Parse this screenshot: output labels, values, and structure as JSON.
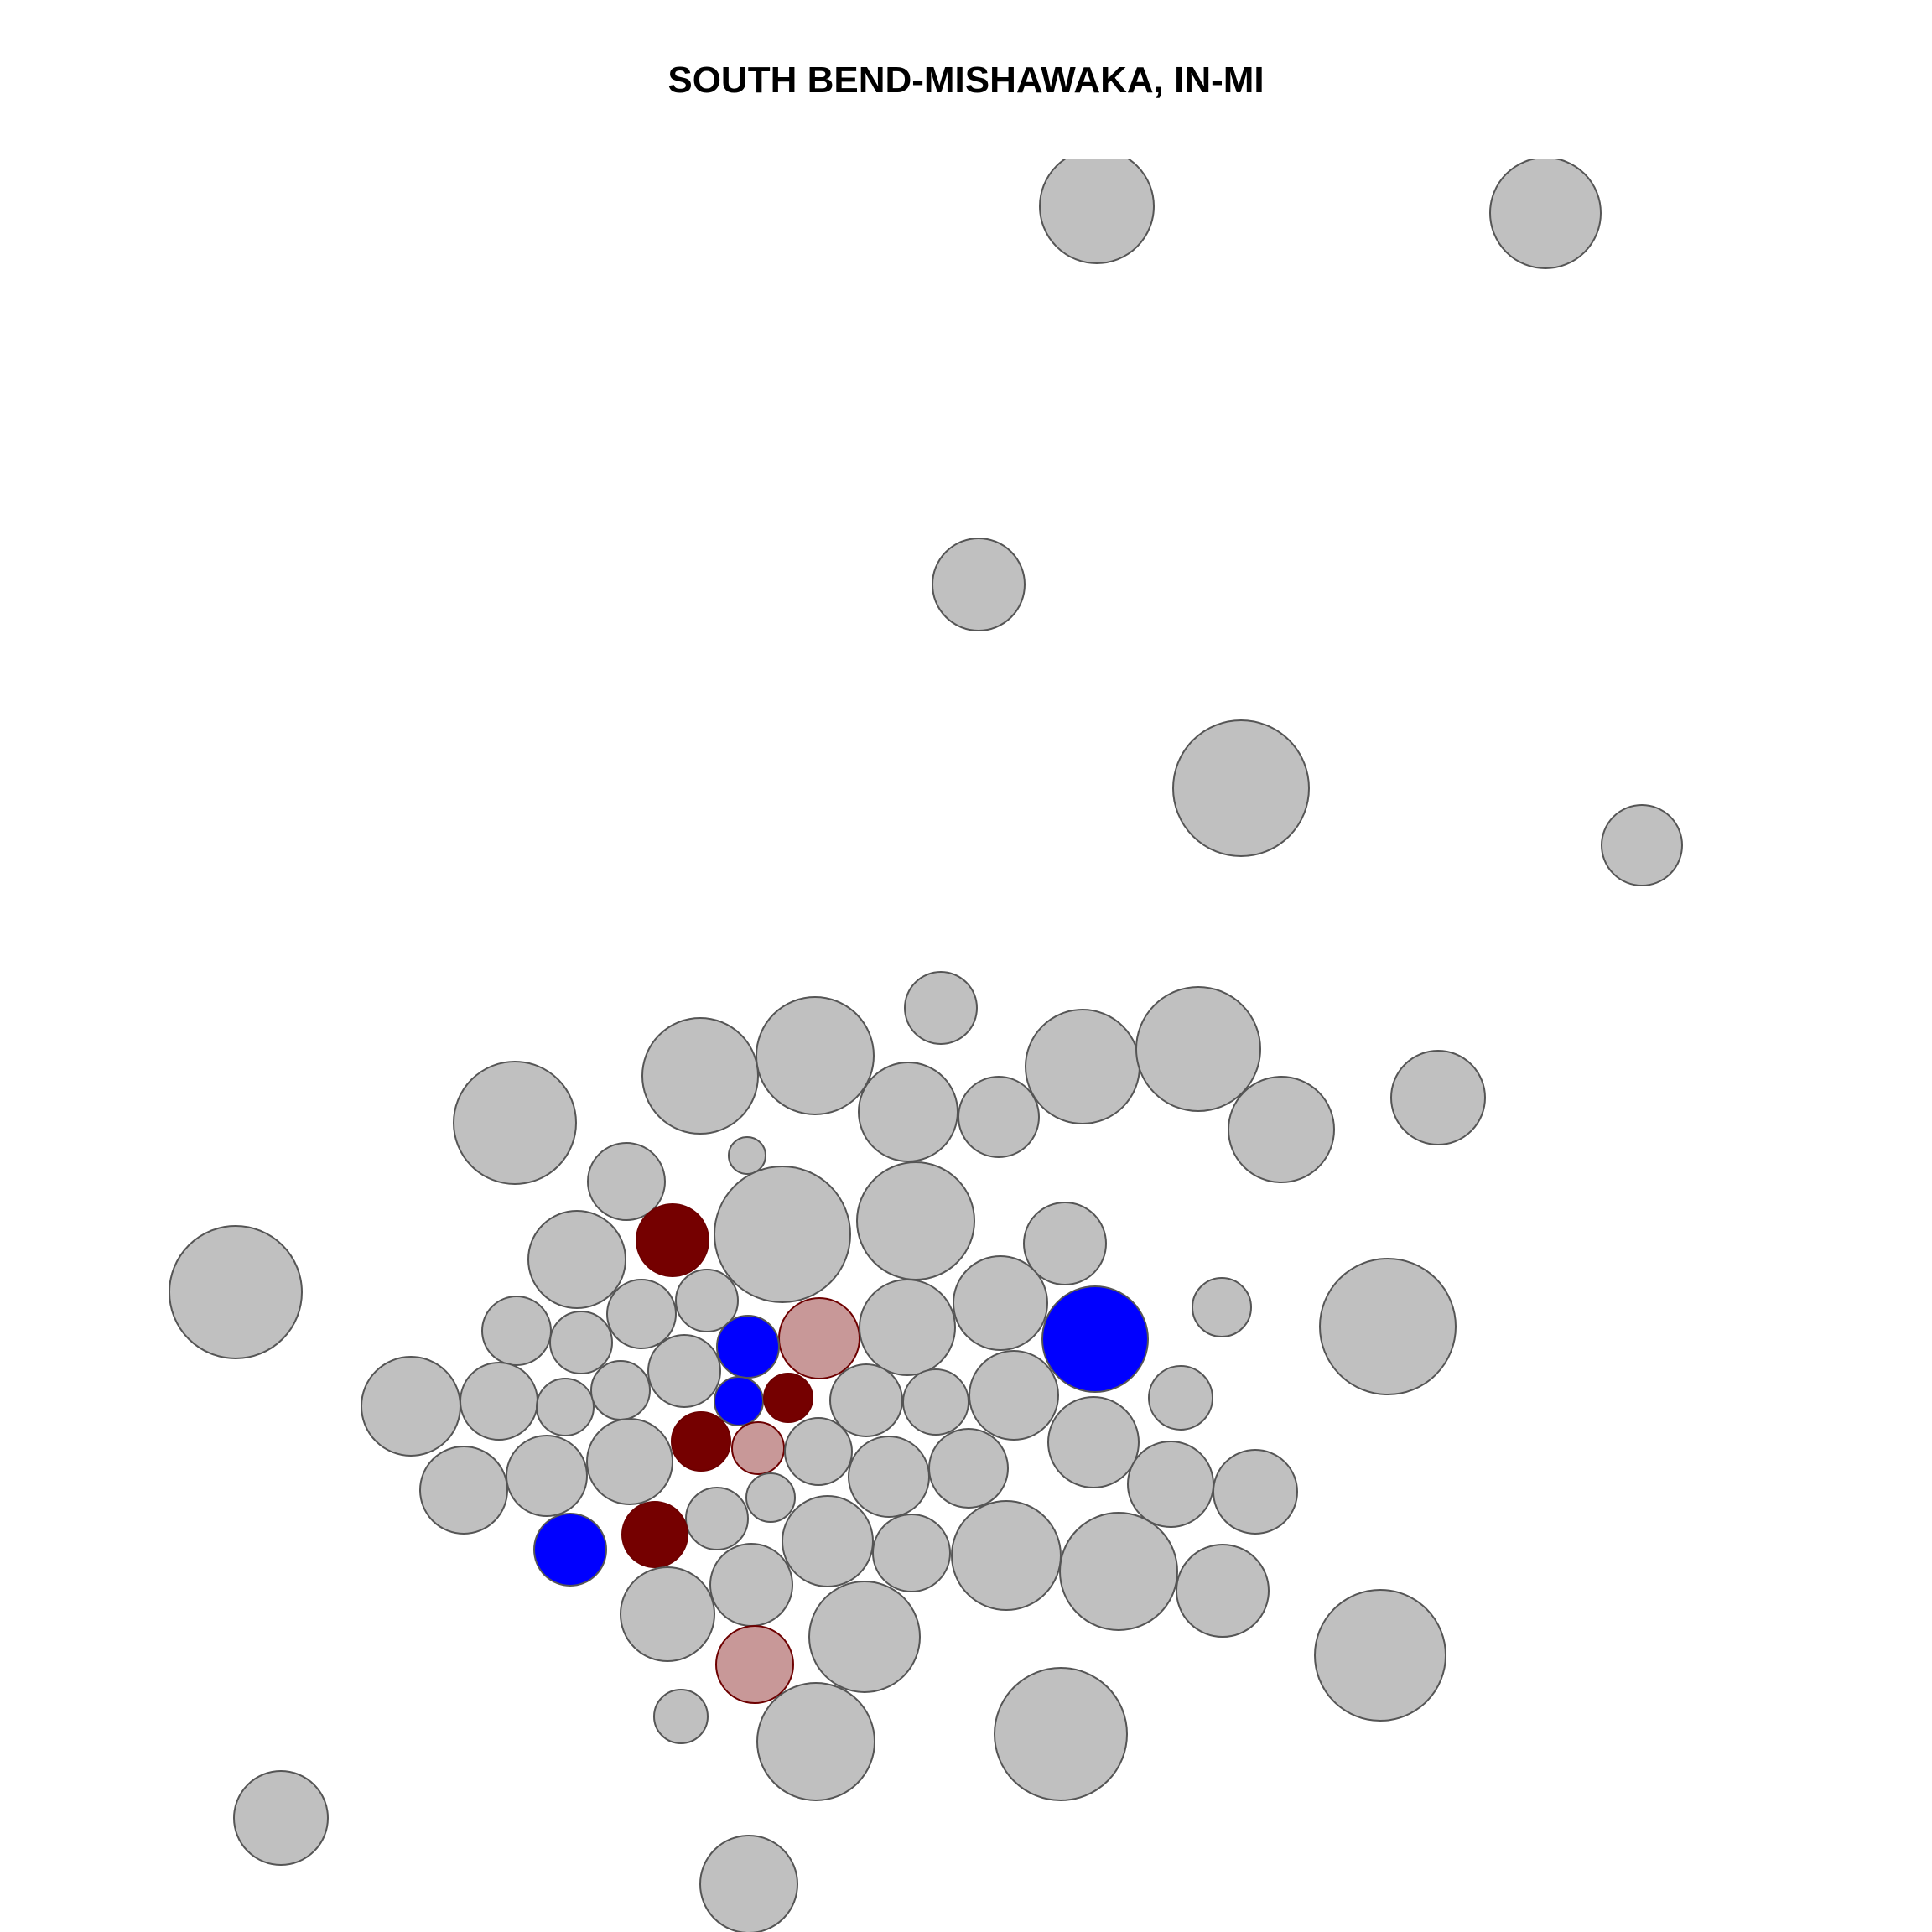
{
  "title": "SOUTH BEND-MISHAWAKA, IN-MI",
  "colors": {
    "neutral_fill": "#c0c0c0",
    "neutral_stroke": "#555555",
    "dark_red_fill": "#750000",
    "pink_fill": "#c89898",
    "red_stroke": "#6e0000",
    "blue_fill": "#0000ff"
  },
  "legend": null,
  "categories": [
    "neutral",
    "dark-red",
    "pink",
    "blue"
  ],
  "region_count": 77
}
